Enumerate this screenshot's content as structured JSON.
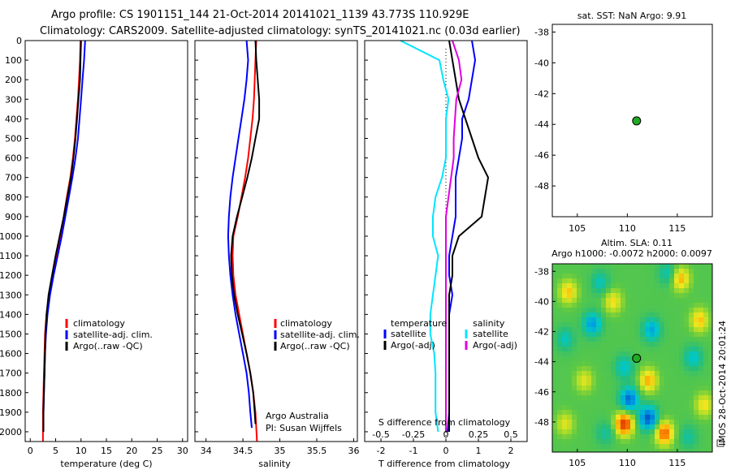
{
  "header": {
    "line1": "Argo profile: CS 1901151_144 21-Oct-2014 20141021_1139 43.773S 110.929E",
    "line2": "Climatology: CARS2009. Satellite-adjusted climatology: synTS_20141021.nc (0.03d earlier)"
  },
  "colors": {
    "climatology": "#ff0000",
    "satellite": "#0000ff",
    "argo": "#000000",
    "sal_satellite": "#00e5ff",
    "sal_argo": "#e000e0",
    "float_marker": "#22aa22"
  },
  "panels": {
    "temperature": {
      "xlabel": "temperature (deg C)",
      "legend": [
        "climatology",
        "satellite-adj. clim.",
        "Argo(..raw -QC)"
      ]
    },
    "salinity": {
      "xlabel": "salinity",
      "legend": [
        "climatology",
        "satellite-adj. clim.",
        "Argo(..raw -QC)"
      ],
      "note1": "Argo Australia",
      "note2": "PI: Susan Wijffels"
    },
    "difference": {
      "xlabel": "T difference from climatology",
      "top_axis_label": "S difference from climatology",
      "legend_temp_title": "temperature",
      "legend_sal_title": "salinity",
      "legend_temp": [
        "satellite",
        "Argo(-adj)"
      ],
      "legend_sal": [
        "satellite",
        "Argo(-adj)"
      ]
    },
    "sst_map": {
      "title": "sat. SST: NaN Argo: 9.91"
    },
    "sla_map": {
      "title1": "Altim. SLA: 0.11",
      "title2": "Argo h1000: -0.0072 h2000: 0.0097",
      "stamp": "IMOS 28-Oct-2014 20:01:24"
    }
  },
  "chart_data": [
    {
      "type": "line",
      "title": "",
      "xlabel": "temperature (deg C)",
      "ylabel": "",
      "xlim": [
        -1,
        31
      ],
      "ylim": [
        2050,
        0
      ],
      "xticks": [
        0,
        5,
        10,
        15,
        20,
        25,
        30
      ],
      "yticks": [
        0,
        100,
        200,
        300,
        400,
        500,
        600,
        700,
        800,
        900,
        1000,
        1100,
        1200,
        1300,
        1400,
        1500,
        1600,
        1700,
        1800,
        1900,
        2000
      ],
      "series": [
        {
          "name": "climatology",
          "x": [
            9.9,
            9.8,
            9.6,
            9.4,
            9.1,
            8.8,
            8.4,
            7.9,
            7.2,
            6.6,
            5.9,
            5.2,
            4.5,
            3.7,
            3.2,
            2.9,
            2.8,
            2.7,
            2.6,
            2.5,
            2.5
          ],
          "y": [
            0,
            100,
            200,
            300,
            400,
            500,
            600,
            700,
            800,
            900,
            1000,
            1100,
            1200,
            1300,
            1400,
            1500,
            1600,
            1700,
            1800,
            1900,
            2050
          ]
        },
        {
          "name": "satellite-adj. clim.",
          "x": [
            10.8,
            10.6,
            10.3,
            10.0,
            9.7,
            9.4,
            8.9,
            8.3,
            7.6,
            6.9,
            6.2,
            5.4,
            4.6,
            3.9,
            3.4,
            3.1,
            2.9,
            2.8,
            2.7,
            2.6,
            2.6
          ],
          "y": [
            0,
            100,
            200,
            300,
            400,
            500,
            600,
            700,
            800,
            900,
            1000,
            1100,
            1200,
            1300,
            1400,
            1500,
            1600,
            1700,
            1800,
            1900,
            2000
          ]
        },
        {
          "name": "Argo(..raw -QC)",
          "x": [
            10.0,
            9.9,
            9.8,
            9.5,
            9.2,
            8.9,
            8.5,
            8.0,
            7.3,
            6.6,
            5.8,
            5.0,
            4.3,
            3.6,
            3.2,
            3.0,
            2.9,
            2.8,
            2.7,
            2.6,
            2.6
          ],
          "y": [
            0,
            100,
            200,
            300,
            400,
            500,
            600,
            700,
            800,
            900,
            1000,
            1100,
            1200,
            1300,
            1400,
            1500,
            1600,
            1700,
            1800,
            1900,
            2000
          ]
        }
      ]
    },
    {
      "type": "line",
      "title": "",
      "xlabel": "salinity",
      "ylabel": "",
      "xlim": [
        33.85,
        36.05
      ],
      "ylim": [
        2050,
        0
      ],
      "xticks": [
        34,
        34.5,
        35,
        35.5,
        36
      ],
      "series": [
        {
          "name": "climatology",
          "x": [
            34.68,
            34.67,
            34.66,
            34.65,
            34.63,
            34.6,
            34.57,
            34.53,
            34.48,
            34.43,
            34.37,
            34.36,
            34.37,
            34.4,
            34.45,
            34.5,
            34.55,
            34.6,
            34.64,
            34.67,
            34.69
          ],
          "y": [
            0,
            100,
            200,
            300,
            400,
            500,
            600,
            700,
            800,
            900,
            1000,
            1100,
            1200,
            1300,
            1400,
            1500,
            1600,
            1700,
            1800,
            1900,
            2050
          ]
        },
        {
          "name": "satellite-adj. clim.",
          "x": [
            34.55,
            34.57,
            34.55,
            34.52,
            34.48,
            34.44,
            34.4,
            34.36,
            34.33,
            34.31,
            34.3,
            34.31,
            34.33,
            34.36,
            34.4,
            34.45,
            34.5,
            34.55,
            34.58,
            34.6,
            34.62
          ],
          "y": [
            0,
            100,
            200,
            300,
            400,
            500,
            600,
            700,
            800,
            900,
            1000,
            1100,
            1200,
            1300,
            1400,
            1500,
            1600,
            1700,
            1800,
            1900,
            1980
          ]
        },
        {
          "name": "Argo(..raw -QC)",
          "x": [
            34.67,
            34.68,
            34.7,
            34.72,
            34.72,
            34.67,
            34.62,
            34.56,
            34.49,
            34.42,
            34.36,
            34.34,
            34.35,
            34.38,
            34.43,
            34.49,
            34.55,
            34.6,
            34.64,
            34.66,
            34.67
          ],
          "y": [
            0,
            100,
            200,
            300,
            400,
            500,
            600,
            700,
            800,
            900,
            1000,
            1100,
            1200,
            1300,
            1400,
            1500,
            1600,
            1700,
            1800,
            1900,
            1960
          ]
        }
      ]
    },
    {
      "type": "line",
      "title": "",
      "xlabel": "T difference from climatology",
      "x2label": "S difference from climatology",
      "xlim": [
        -2.5,
        2.5
      ],
      "x2lim": [
        -0.625,
        0.625
      ],
      "ylim": [
        2050,
        0
      ],
      "xticks": [
        -2,
        -1,
        0,
        1,
        2
      ],
      "x2ticks": [
        -0.5,
        -0.25,
        0,
        0.25,
        0.5
      ],
      "series": [
        {
          "name": "temperature satellite",
          "axis": "T",
          "x": [
            0.8,
            0.9,
            0.8,
            0.7,
            0.5,
            0.5,
            0.4,
            0.3,
            0.3,
            0.3,
            0.2,
            0.1,
            0.1,
            0.2,
            0.1,
            0.1,
            0.1,
            0.1,
            0.1,
            0.1,
            0.05
          ],
          "y": [
            0,
            100,
            200,
            300,
            400,
            500,
            600,
            700,
            800,
            900,
            1000,
            1100,
            1200,
            1300,
            1400,
            1500,
            1600,
            1700,
            1800,
            1900,
            2000
          ]
        },
        {
          "name": "temperature Argo(-adj)",
          "axis": "T",
          "x": [
            0.1,
            0.2,
            0.3,
            0.4,
            0.6,
            0.8,
            1.0,
            1.3,
            1.2,
            1.1,
            0.4,
            0.2,
            0.2,
            0.1,
            0.1,
            0.1,
            0.1,
            0.1,
            0.1,
            0.1,
            0.1
          ],
          "y": [
            0,
            100,
            200,
            300,
            400,
            500,
            600,
            700,
            800,
            900,
            1000,
            1100,
            1200,
            1300,
            1400,
            1500,
            1600,
            1700,
            1800,
            1900,
            2000
          ]
        },
        {
          "name": "salinity satellite",
          "axis": "S",
          "x": [
            -0.35,
            -0.05,
            -0.02,
            0.02,
            0.0,
            0.0,
            0.0,
            -0.03,
            -0.08,
            -0.1,
            -0.1,
            -0.06,
            -0.08,
            -0.1,
            -0.12,
            -0.12,
            -0.09,
            -0.08,
            -0.08,
            -0.08,
            -0.06
          ],
          "y": [
            0,
            100,
            200,
            300,
            400,
            500,
            600,
            700,
            800,
            900,
            1000,
            1100,
            1200,
            1300,
            1400,
            1500,
            1600,
            1700,
            1800,
            1900,
            2000
          ]
        },
        {
          "name": "salinity Argo(-adj)",
          "axis": "S",
          "x": [
            0.05,
            0.1,
            0.12,
            0.08,
            0.07,
            0.06,
            0.06,
            0.04,
            0.02,
            0.0,
            0.0,
            0.0,
            0.0,
            0.0,
            0.0,
            0.0,
            0.0,
            0.0,
            0.0,
            0.0,
            0.0
          ],
          "y": [
            0,
            100,
            200,
            300,
            400,
            500,
            600,
            700,
            800,
            900,
            1000,
            1100,
            1200,
            1300,
            1400,
            1500,
            1600,
            1700,
            1800,
            1900,
            2000
          ]
        }
      ]
    },
    {
      "type": "scatter",
      "title": "sat. SST: NaN Argo: 9.91",
      "xlim": [
        102.5,
        118.5
      ],
      "ylim": [
        -50,
        -37.5
      ],
      "xticks": [
        105,
        110,
        115
      ],
      "yticks": [
        -38,
        -40,
        -42,
        -44,
        -46,
        -48
      ],
      "points": [
        {
          "x": 110.929,
          "y": -43.773
        }
      ]
    },
    {
      "type": "heatmap",
      "title": "Altim. SLA: 0.11",
      "subtitle": "Argo h1000: -0.0072 h2000: 0.0097",
      "xlim": [
        102.5,
        118.5
      ],
      "ylim": [
        -50,
        -37.5
      ],
      "xticks": [
        105,
        110,
        115
      ],
      "yticks": [
        -38,
        -40,
        -42,
        -44,
        -46,
        -48
      ],
      "points": [
        {
          "x": 110.929,
          "y": -43.773
        }
      ]
    }
  ]
}
